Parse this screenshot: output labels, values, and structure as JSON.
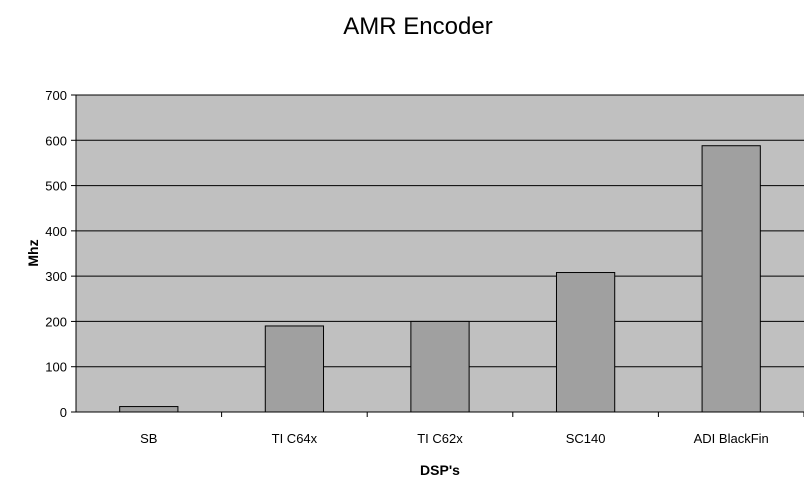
{
  "chart_data": {
    "type": "bar",
    "title": "AMR Encoder",
    "xlabel": "DSP's",
    "ylabel": "Mhz",
    "categories": [
      "SB",
      "TI C64x",
      "TI C62x",
      "SC140",
      "ADI BlackFin"
    ],
    "values": [
      12,
      190,
      200,
      308,
      588
    ],
    "ylim": [
      0,
      700
    ],
    "yticks": [
      0,
      100,
      200,
      300,
      400,
      500,
      600,
      700
    ],
    "grid": true,
    "legend": "none"
  },
  "colors": {
    "plot_background": "#c0c0c0",
    "bar_fill": "#a0a0a0",
    "bar_stroke": "#000000",
    "gridline": "#000000"
  }
}
